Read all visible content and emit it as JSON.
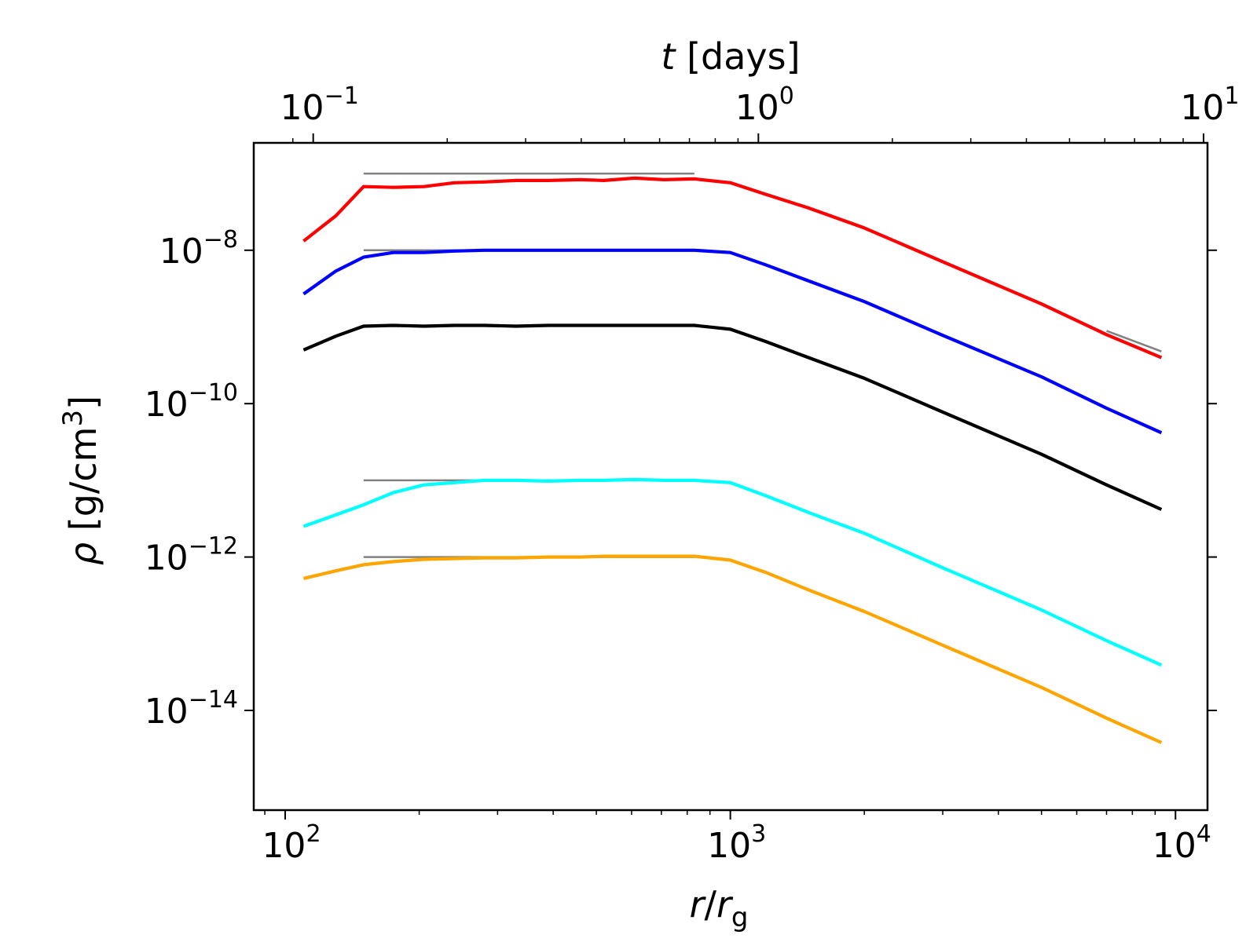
{
  "chart_data": {
    "type": "line",
    "x_scale": "log",
    "y_scale": "log",
    "xlim": [
      85,
      11800
    ],
    "ylim_log10": [
      -15.3,
      -6.6
    ],
    "xlabel": {
      "italic": "r",
      "slash": "/",
      "italic2": "r",
      "sub": "g"
    },
    "ylabel": {
      "italic": "ρ",
      "rest": " [g/cm",
      "sup": "3",
      "close": "]"
    },
    "top_axis": {
      "label": {
        "italic": "t",
        "rest": " [days]"
      },
      "days_per_rg_factor": 0.000865,
      "major_ticks": [
        {
          "value": 0.1,
          "base": "10",
          "exp": "−1"
        },
        {
          "value": 1,
          "base": "10",
          "exp": "0"
        },
        {
          "value": 10,
          "base": "10",
          "exp": "1"
        }
      ],
      "minor_ticks": [
        0.09,
        0.2,
        0.3,
        0.4,
        0.5,
        0.6,
        0.7,
        0.8,
        0.9,
        2,
        3,
        4,
        5,
        6,
        7,
        8,
        9,
        20,
        30,
        40,
        50,
        60,
        70,
        80,
        90
      ]
    },
    "x_major_ticks": [
      {
        "value": 100,
        "base": "10",
        "exp": "2"
      },
      {
        "value": 1000,
        "base": "10",
        "exp": "3"
      },
      {
        "value": 10000,
        "base": "10",
        "exp": "4"
      }
    ],
    "x_minor_ticks": [
      90,
      200,
      300,
      400,
      500,
      600,
      700,
      800,
      900,
      2000,
      3000,
      4000,
      5000,
      6000,
      7000,
      8000,
      9000
    ],
    "y_major_ticks": [
      {
        "log_value": -8,
        "base": "10",
        "exp": "−8"
      },
      {
        "log_value": -10,
        "base": "10",
        "exp": "−10"
      },
      {
        "log_value": -12,
        "base": "10",
        "exp": "−12"
      },
      {
        "log_value": -14,
        "base": "10",
        "exp": "−14"
      }
    ],
    "series": [
      {
        "name": "red",
        "color": "#ff0000",
        "x": [
          110,
          130,
          150,
          175,
          205,
          240,
          280,
          330,
          390,
          460,
          520,
          610,
          710,
          830,
          1000,
          1200,
          1500,
          2000,
          3000,
          5000,
          7000,
          9300
        ],
        "log_y": [
          -7.88,
          -7.55,
          -7.17,
          -7.18,
          -7.17,
          -7.12,
          -7.11,
          -7.09,
          -7.09,
          -7.08,
          -7.09,
          -7.06,
          -7.08,
          -7.07,
          -7.12,
          -7.27,
          -7.45,
          -7.71,
          -8.15,
          -8.7,
          -9.1,
          -9.4
        ]
      },
      {
        "name": "blue",
        "color": "#0000ff",
        "x": [
          110,
          130,
          150,
          175,
          205,
          240,
          280,
          330,
          390,
          460,
          520,
          610,
          710,
          830,
          1000,
          1200,
          1500,
          2000,
          3000,
          5000,
          7000,
          9300
        ],
        "log_y": [
          -8.57,
          -8.27,
          -8.09,
          -8.03,
          -8.03,
          -8.01,
          -8.0,
          -8.0,
          -8.0,
          -8.0,
          -8.0,
          -8.0,
          -8.0,
          -8.0,
          -8.03,
          -8.19,
          -8.4,
          -8.67,
          -9.11,
          -9.65,
          -10.06,
          -10.38
        ]
      },
      {
        "name": "black",
        "color": "#000000",
        "x": [
          110,
          130,
          150,
          175,
          205,
          240,
          280,
          330,
          390,
          460,
          520,
          610,
          710,
          830,
          1000,
          1200,
          1500,
          2000,
          3000,
          5000,
          7000,
          9300
        ],
        "log_y": [
          -9.3,
          -9.12,
          -8.99,
          -8.98,
          -8.99,
          -8.98,
          -8.98,
          -8.99,
          -8.98,
          -8.98,
          -8.98,
          -8.98,
          -8.98,
          -8.98,
          -9.03,
          -9.19,
          -9.4,
          -9.67,
          -10.11,
          -10.66,
          -11.06,
          -11.38
        ]
      },
      {
        "name": "cyan",
        "color": "#00ffff",
        "x": [
          110,
          130,
          150,
          175,
          205,
          240,
          280,
          330,
          390,
          460,
          520,
          610,
          710,
          830,
          1000,
          1200,
          1500,
          2000,
          3000,
          5000,
          7000,
          9300
        ],
        "log_y": [
          -11.6,
          -11.45,
          -11.32,
          -11.16,
          -11.06,
          -11.03,
          -11.0,
          -11.0,
          -11.01,
          -11.0,
          -11.0,
          -10.99,
          -11.0,
          -11.0,
          -11.03,
          -11.2,
          -11.42,
          -11.69,
          -12.14,
          -12.69,
          -13.09,
          -13.41
        ]
      },
      {
        "name": "orange",
        "color": "#ffa500",
        "x": [
          110,
          130,
          150,
          175,
          205,
          240,
          280,
          330,
          390,
          460,
          520,
          610,
          710,
          830,
          1000,
          1200,
          1500,
          2000,
          3000,
          5000,
          7000,
          9300
        ],
        "log_y": [
          -12.28,
          -12.18,
          -12.1,
          -12.06,
          -12.03,
          -12.02,
          -12.01,
          -12.01,
          -12.0,
          -12.0,
          -11.99,
          -11.99,
          -11.99,
          -11.99,
          -12.04,
          -12.2,
          -12.43,
          -12.71,
          -13.15,
          -13.7,
          -14.1,
          -14.42
        ]
      }
    ],
    "reference_lines": [
      {
        "name": "ref-red",
        "color": "#808080",
        "x": [
          150,
          830
        ],
        "log_y": [
          -7.0,
          -7.0
        ]
      },
      {
        "name": "ref-red-tail",
        "color": "#808080",
        "x": [
          7000,
          9300
        ],
        "log_y": [
          -9.05,
          -9.32
        ]
      },
      {
        "name": "ref-blue",
        "color": "#808080",
        "x": [
          150,
          830
        ],
        "log_y": [
          -8.0,
          -8.0
        ]
      },
      {
        "name": "ref-cyan",
        "color": "#808080",
        "x": [
          150,
          830
        ],
        "log_y": [
          -11.0,
          -11.0
        ]
      },
      {
        "name": "ref-orange",
        "color": "#808080",
        "x": [
          150,
          830
        ],
        "log_y": [
          -12.0,
          -12.0
        ]
      }
    ]
  }
}
